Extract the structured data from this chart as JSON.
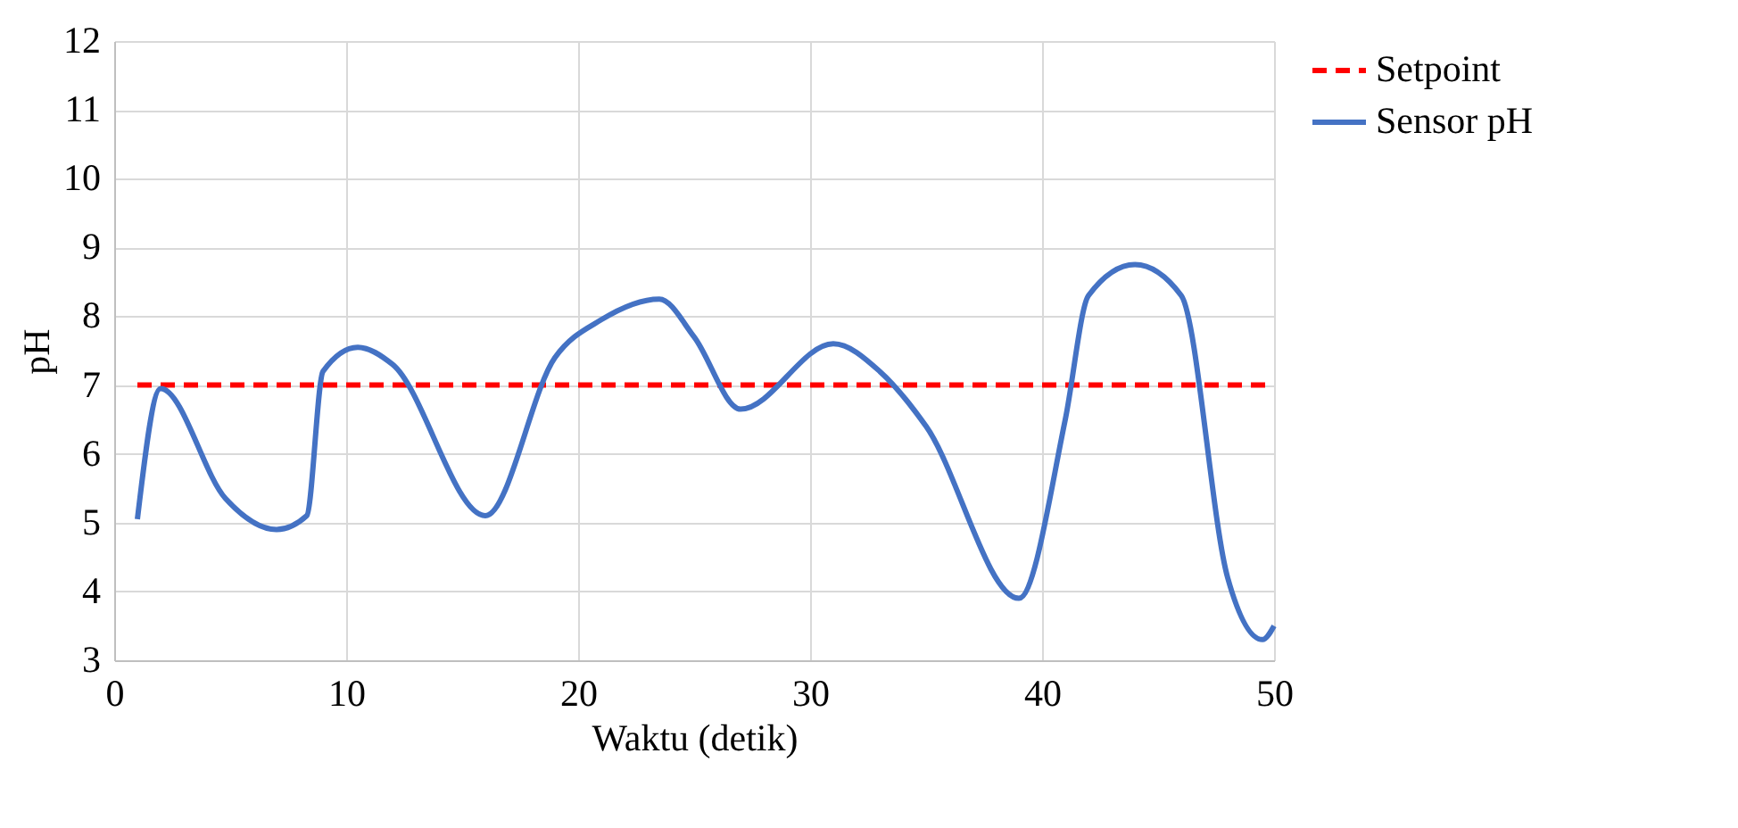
{
  "chart_data": {
    "type": "line",
    "xlabel": "Waktu (detik)",
    "ylabel": "pH",
    "xlim": [
      0,
      50
    ],
    "xticks": [
      0,
      10,
      20,
      30,
      40,
      50
    ],
    "ylim": [
      3,
      12
    ],
    "yticks": [
      3,
      4,
      5,
      6,
      7,
      8,
      9,
      10,
      11,
      12
    ],
    "grid": true,
    "legend": "right",
    "marker": "none",
    "series": [
      {
        "name": "Setpoint",
        "color": "#ff0000",
        "line_style": "dashed",
        "x": [
          1,
          50
        ],
        "values": [
          7,
          7
        ]
      },
      {
        "name": "Sensor pH",
        "color": "#4472c4",
        "line_style": "solid",
        "x": [
          1,
          2,
          4.8,
          7,
          8.3,
          9,
          10.5,
          12,
          16,
          19,
          21,
          23.5,
          25,
          27,
          31,
          33,
          35,
          39,
          41,
          42,
          44,
          46,
          48,
          49.5,
          50
        ],
        "values": [
          5.05,
          6.95,
          5.35,
          4.9,
          5.1,
          7.2,
          7.55,
          7.3,
          5.1,
          7.4,
          7.95,
          8.25,
          7.7,
          6.65,
          7.6,
          7.2,
          6.4,
          3.9,
          6.5,
          8.3,
          8.75,
          8.3,
          4.2,
          3.3,
          3.5
        ]
      }
    ]
  }
}
